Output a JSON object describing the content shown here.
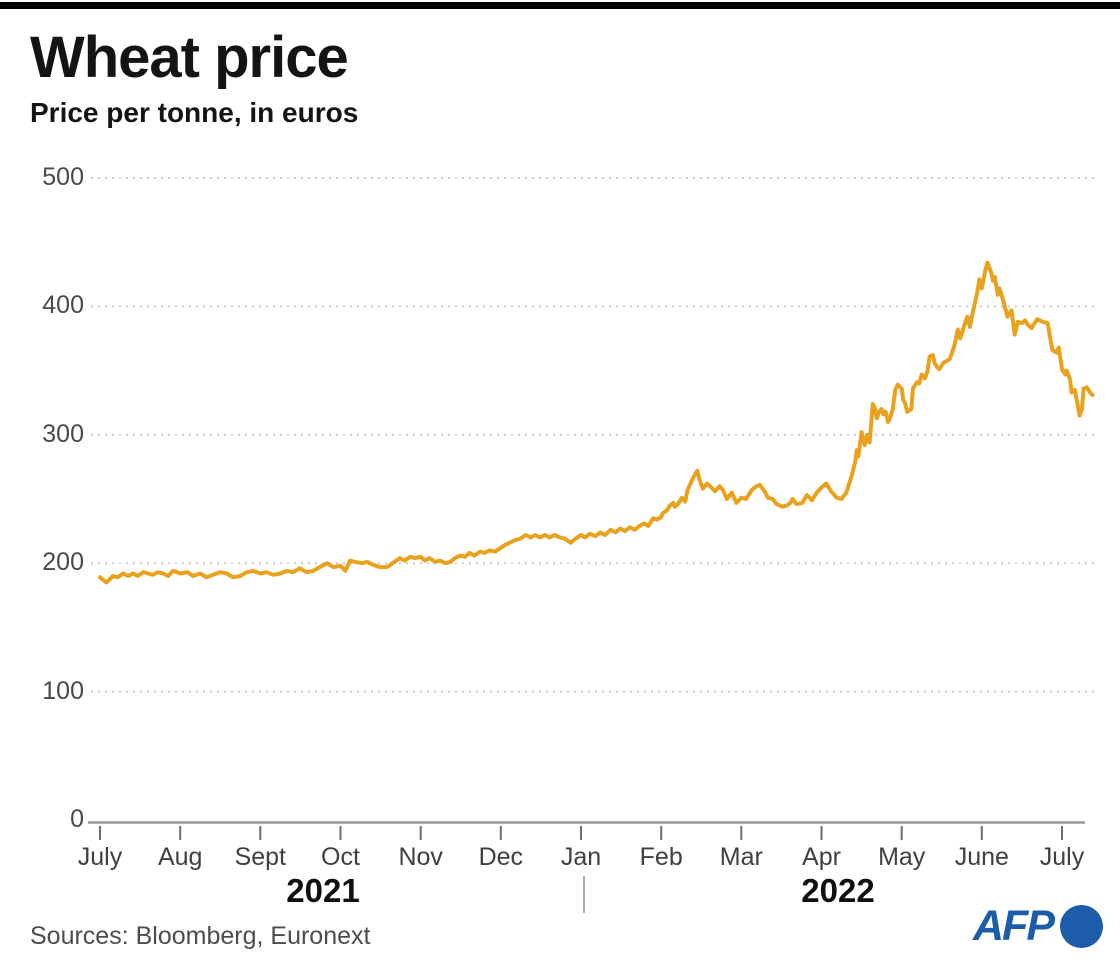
{
  "header": {
    "title": "Wheat price",
    "subtitle": "Price per tonne, in euros"
  },
  "footer": {
    "source": "Sources: Bloomberg, Euronext",
    "logo_text": "AFP"
  },
  "colors": {
    "line": "#E8A21E",
    "logo_blue": "#1D5CA9",
    "grid": "#CBCBCB",
    "axis": "#9B9B9B",
    "tick": "#6E6E6E",
    "top_bar": "#000000"
  },
  "chart_data": {
    "type": "line",
    "title": "Wheat price",
    "subtitle": "Price per tonne, in euros",
    "ylabel": "Price per tonne (euros)",
    "ylim": [
      0,
      500
    ],
    "yticks": [
      0,
      100,
      200,
      300,
      400,
      500
    ],
    "x_tick_labels": [
      "July",
      "Aug",
      "Sept",
      "Oct",
      "Nov",
      "Dec",
      "Jan",
      "Feb",
      "Mar",
      "Apr",
      "May",
      "June",
      "July"
    ],
    "year_labels": [
      "2021",
      "2022"
    ],
    "grid": "horizontal dotted gridlines at 100-500",
    "legend": "none",
    "series": [
      {
        "name": "Wheat price (euros per tonne)",
        "color": "#E8A21E",
        "x_unit": "months since 1 July 2021 (integer = month tick)",
        "points": [
          [
            0,
            189
          ],
          [
            0.04,
            187
          ],
          [
            0.08,
            185
          ],
          [
            0.13,
            188
          ],
          [
            0.16,
            190
          ],
          [
            0.22,
            189
          ],
          [
            0.29,
            192
          ],
          [
            0.35,
            190
          ],
          [
            0.41,
            192
          ],
          [
            0.47,
            190
          ],
          [
            0.54,
            193
          ],
          [
            0.6,
            192
          ],
          [
            0.66,
            191
          ],
          [
            0.72,
            193
          ],
          [
            0.79,
            192
          ],
          [
            0.85,
            190
          ],
          [
            0.91,
            194
          ],
          [
            0.96,
            193
          ],
          [
            1,
            192
          ],
          [
            1.09,
            193
          ],
          [
            1.16,
            190
          ],
          [
            1.25,
            192
          ],
          [
            1.33,
            189
          ],
          [
            1.41,
            191
          ],
          [
            1.5,
            193
          ],
          [
            1.58,
            192
          ],
          [
            1.66,
            189
          ],
          [
            1.75,
            190
          ],
          [
            1.83,
            193
          ],
          [
            1.91,
            194
          ],
          [
            2,
            192
          ],
          [
            2.08,
            193
          ],
          [
            2.16,
            191
          ],
          [
            2.25,
            192
          ],
          [
            2.33,
            194
          ],
          [
            2.41,
            193
          ],
          [
            2.49,
            196
          ],
          [
            2.58,
            193
          ],
          [
            2.66,
            194
          ],
          [
            2.74,
            197
          ],
          [
            2.83,
            200
          ],
          [
            2.91,
            197
          ],
          [
            3,
            198
          ],
          [
            3.06,
            194
          ],
          [
            3.12,
            202
          ],
          [
            3.18,
            201
          ],
          [
            3.27,
            200
          ],
          [
            3.33,
            201
          ],
          [
            3.4,
            199
          ],
          [
            3.49,
            197
          ],
          [
            3.58,
            197
          ],
          [
            3.65,
            200
          ],
          [
            3.74,
            204
          ],
          [
            3.8,
            202
          ],
          [
            3.87,
            205
          ],
          [
            3.93,
            204
          ],
          [
            4,
            205
          ],
          [
            4.05,
            202
          ],
          [
            4.11,
            204
          ],
          [
            4.18,
            201
          ],
          [
            4.24,
            202
          ],
          [
            4.31,
            200
          ],
          [
            4.37,
            201
          ],
          [
            4.43,
            204
          ],
          [
            4.49,
            206
          ],
          [
            4.55,
            205
          ],
          [
            4.61,
            208
          ],
          [
            4.67,
            206
          ],
          [
            4.74,
            209
          ],
          [
            4.8,
            208
          ],
          [
            4.86,
            210
          ],
          [
            4.93,
            209
          ],
          [
            5,
            212
          ],
          [
            5.05,
            214
          ],
          [
            5.11,
            216
          ],
          [
            5.18,
            218
          ],
          [
            5.24,
            219
          ],
          [
            5.31,
            222
          ],
          [
            5.37,
            220
          ],
          [
            5.43,
            222
          ],
          [
            5.49,
            220
          ],
          [
            5.55,
            222
          ],
          [
            5.61,
            220
          ],
          [
            5.67,
            222
          ],
          [
            5.74,
            220
          ],
          [
            5.8,
            219
          ],
          [
            5.87,
            216
          ],
          [
            5.93,
            219
          ],
          [
            6,
            222
          ],
          [
            6.05,
            220
          ],
          [
            6.11,
            223
          ],
          [
            6.18,
            221
          ],
          [
            6.24,
            224
          ],
          [
            6.3,
            222
          ],
          [
            6.37,
            226
          ],
          [
            6.43,
            224
          ],
          [
            6.49,
            227
          ],
          [
            6.55,
            225
          ],
          [
            6.61,
            228
          ],
          [
            6.67,
            226
          ],
          [
            6.73,
            229
          ],
          [
            6.79,
            231
          ],
          [
            6.84,
            229
          ],
          [
            6.9,
            235
          ],
          [
            6.95,
            234
          ],
          [
            7,
            236
          ],
          [
            7.02,
            239
          ],
          [
            7.07,
            241
          ],
          [
            7.11,
            245
          ],
          [
            7.15,
            247
          ],
          [
            7.17,
            244
          ],
          [
            7.21,
            246
          ],
          [
            7.26,
            251
          ],
          [
            7.3,
            248
          ],
          [
            7.33,
            257
          ],
          [
            7.38,
            264
          ],
          [
            7.42,
            269
          ],
          [
            7.45,
            272
          ],
          [
            7.48,
            265
          ],
          [
            7.52,
            258
          ],
          [
            7.57,
            262
          ],
          [
            7.61,
            260
          ],
          [
            7.67,
            256
          ],
          [
            7.73,
            260
          ],
          [
            7.77,
            257
          ],
          [
            7.82,
            250
          ],
          [
            7.88,
            255
          ],
          [
            7.94,
            247
          ],
          [
            8,
            251
          ],
          [
            8.06,
            250
          ],
          [
            8.13,
            257
          ],
          [
            8.19,
            260
          ],
          [
            8.23,
            261
          ],
          [
            8.29,
            256
          ],
          [
            8.33,
            251
          ],
          [
            8.39,
            250
          ],
          [
            8.44,
            246
          ],
          [
            8.51,
            244
          ],
          [
            8.57,
            245
          ],
          [
            8.61,
            247
          ],
          [
            8.64,
            250
          ],
          [
            8.69,
            246
          ],
          [
            8.76,
            247
          ],
          [
            8.82,
            253
          ],
          [
            8.88,
            249
          ],
          [
            8.94,
            255
          ],
          [
            9,
            259
          ],
          [
            9.06,
            262
          ],
          [
            9.12,
            256
          ],
          [
            9.19,
            251
          ],
          [
            9.25,
            250
          ],
          [
            9.31,
            255
          ],
          [
            9.38,
            269
          ],
          [
            9.42,
            279
          ],
          [
            9.44,
            288
          ],
          [
            9.46,
            283
          ],
          [
            9.5,
            302
          ],
          [
            9.54,
            292
          ],
          [
            9.57,
            300
          ],
          [
            9.6,
            294
          ],
          [
            9.64,
            324
          ],
          [
            9.67,
            320
          ],
          [
            9.69,
            313
          ],
          [
            9.72,
            318
          ],
          [
            9.75,
            320
          ],
          [
            9.77,
            316
          ],
          [
            9.8,
            318
          ],
          [
            9.83,
            310
          ],
          [
            9.85,
            312
          ],
          [
            9.89,
            320
          ],
          [
            9.92,
            335
          ],
          [
            9.95,
            339
          ],
          [
            10,
            336
          ],
          [
            10.02,
            327
          ],
          [
            10.04,
            325
          ],
          [
            10.07,
            318
          ],
          [
            10.12,
            320
          ],
          [
            10.14,
            336
          ],
          [
            10.19,
            341
          ],
          [
            10.22,
            340
          ],
          [
            10.25,
            347
          ],
          [
            10.29,
            344
          ],
          [
            10.32,
            349
          ],
          [
            10.35,
            361
          ],
          [
            10.39,
            362
          ],
          [
            10.41,
            356
          ],
          [
            10.45,
            352
          ],
          [
            10.47,
            351
          ],
          [
            10.52,
            356
          ],
          [
            10.6,
            359
          ],
          [
            10.66,
            370
          ],
          [
            10.7,
            382
          ],
          [
            10.73,
            375
          ],
          [
            10.79,
            387
          ],
          [
            10.82,
            392
          ],
          [
            10.85,
            384
          ],
          [
            10.89,
            396
          ],
          [
            10.94,
            410
          ],
          [
            10.97,
            421
          ],
          [
            11,
            414
          ],
          [
            11.04,
            427
          ],
          [
            11.07,
            434
          ],
          [
            11.12,
            426
          ],
          [
            11.14,
            420
          ],
          [
            11.16,
            423
          ],
          [
            11.2,
            409
          ],
          [
            11.22,
            414
          ],
          [
            11.26,
            406
          ],
          [
            11.32,
            392
          ],
          [
            11.37,
            397
          ],
          [
            11.41,
            378
          ],
          [
            11.45,
            388
          ],
          [
            11.5,
            387
          ],
          [
            11.54,
            389
          ],
          [
            11.57,
            386
          ],
          [
            11.62,
            383
          ],
          [
            11.69,
            390
          ],
          [
            11.76,
            388
          ],
          [
            11.82,
            387
          ],
          [
            11.88,
            366
          ],
          [
            11.93,
            364
          ],
          [
            11.96,
            368
          ],
          [
            12,
            351
          ],
          [
            12.04,
            347
          ],
          [
            12.06,
            350
          ],
          [
            12.1,
            343
          ],
          [
            12.12,
            333
          ],
          [
            12.16,
            335
          ],
          [
            12.19,
            325
          ],
          [
            12.22,
            315
          ],
          [
            12.25,
            320
          ],
          [
            12.27,
            336
          ],
          [
            12.31,
            337
          ],
          [
            12.35,
            333
          ],
          [
            12.38,
            331
          ]
        ]
      }
    ]
  }
}
